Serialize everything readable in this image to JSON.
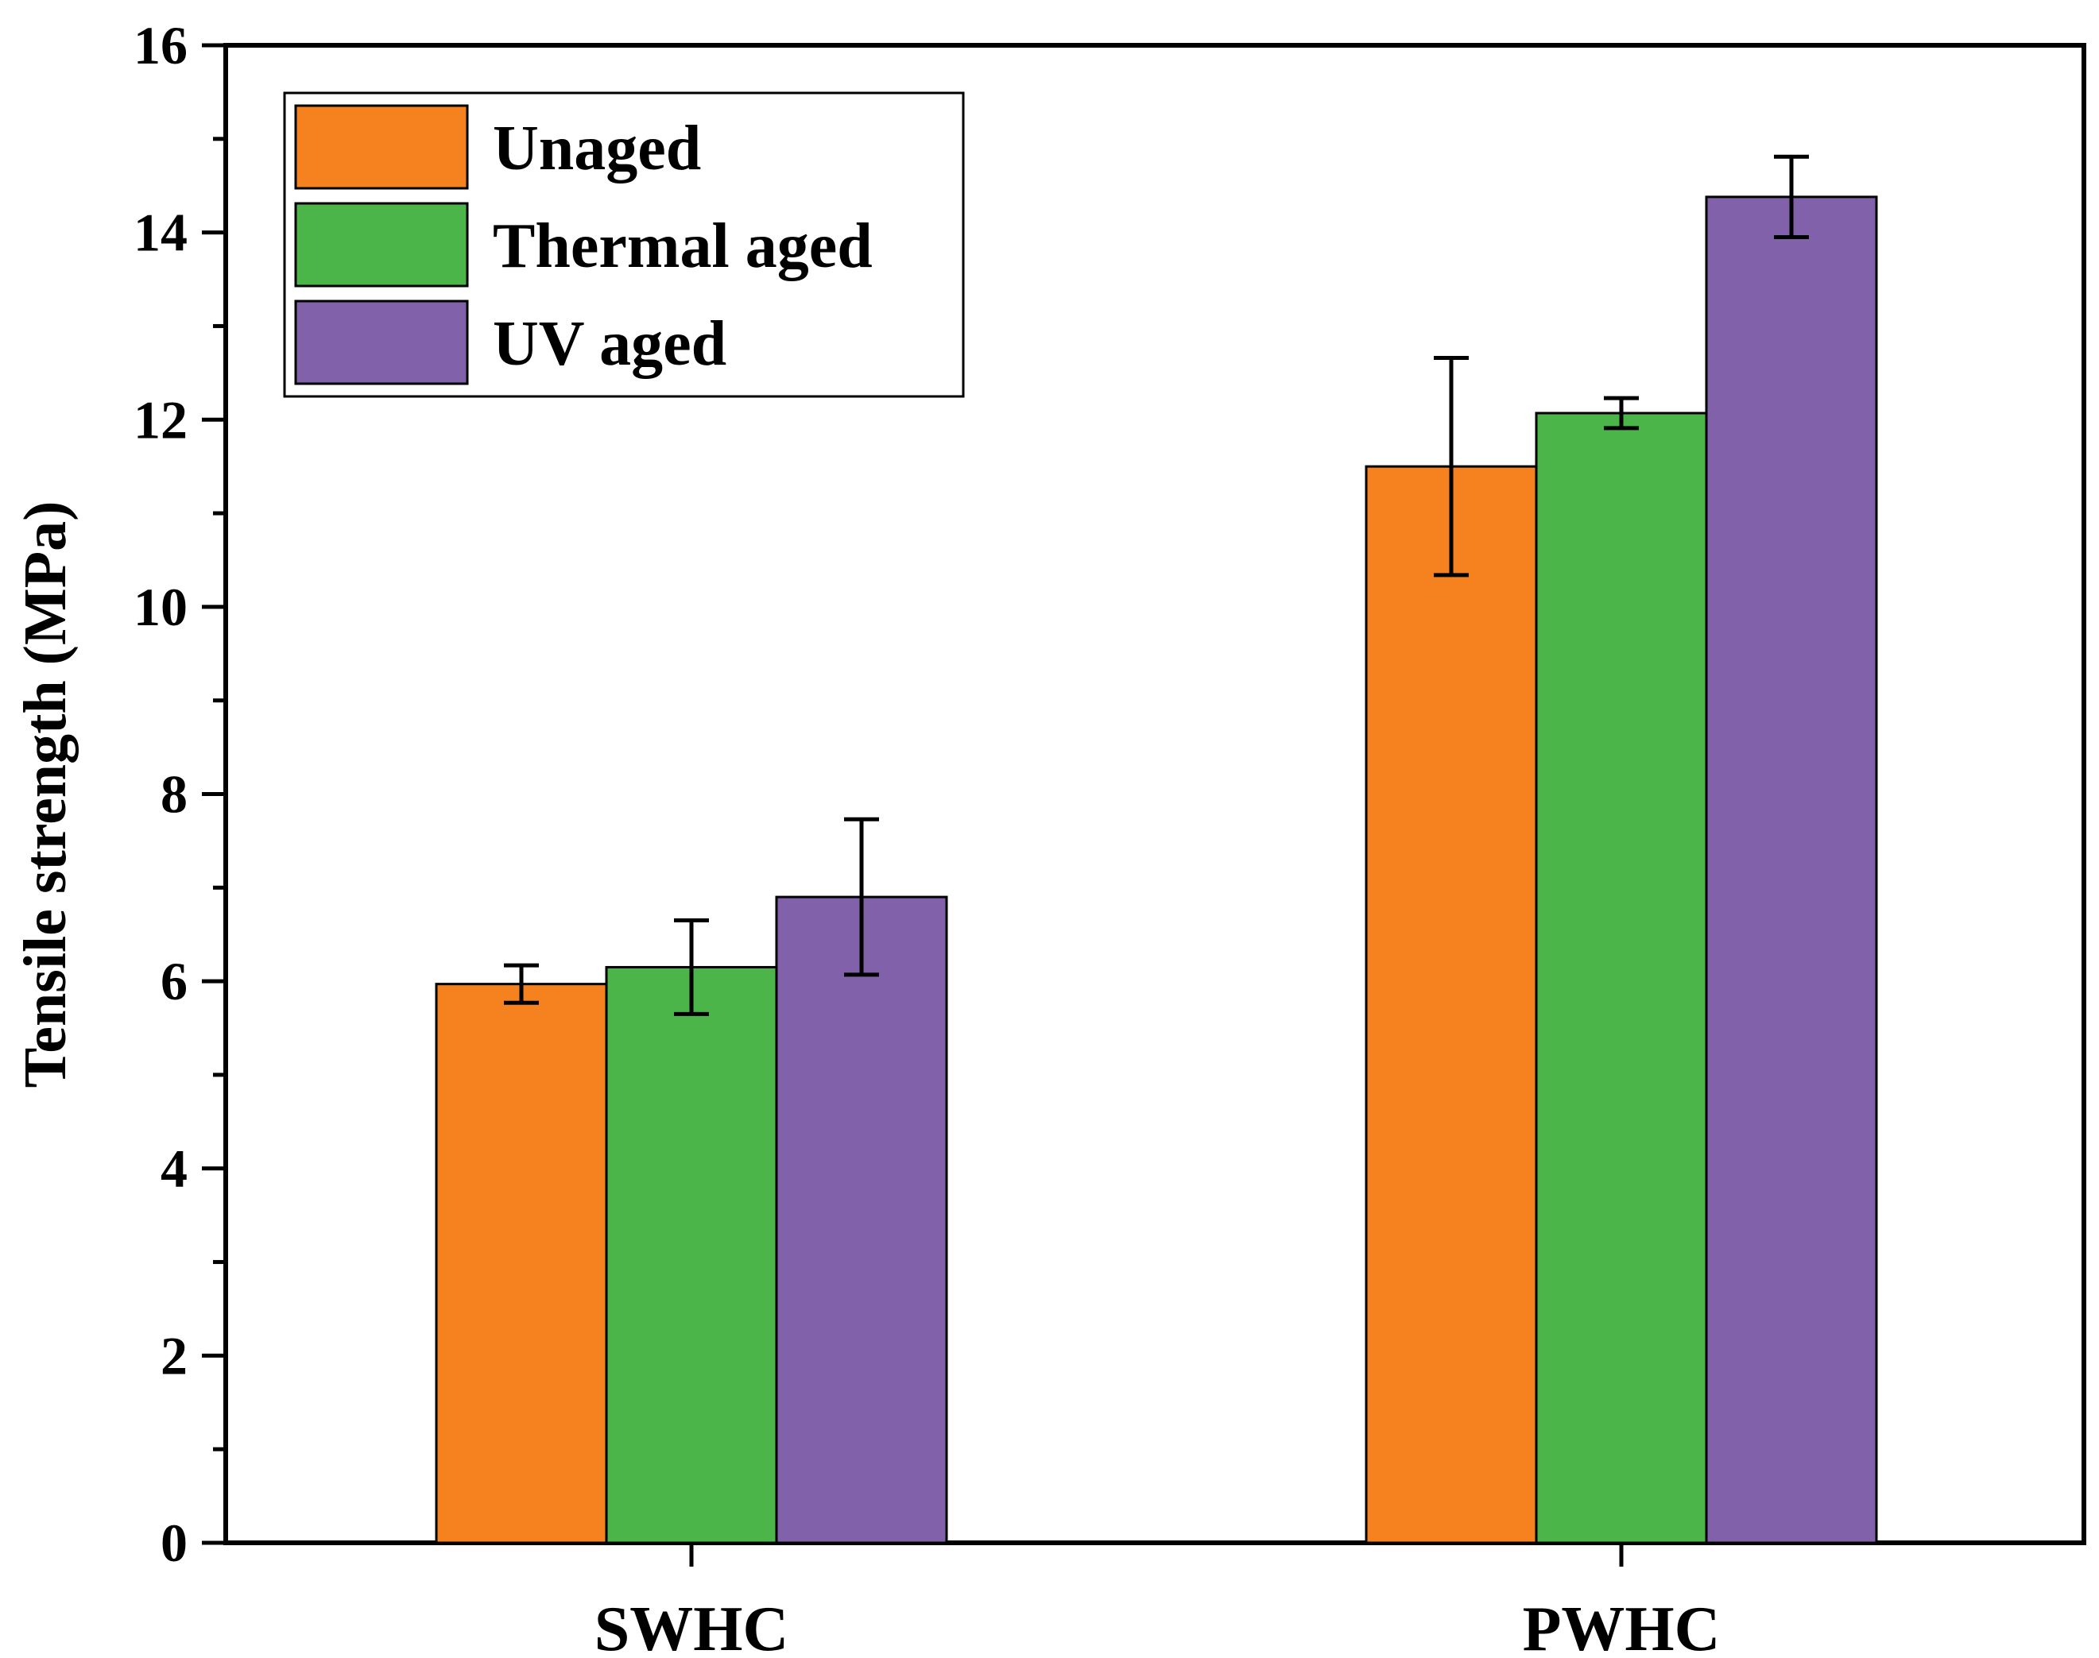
{
  "chart_data": {
    "type": "bar",
    "title": "",
    "xlabel": "",
    "ylabel": "Tensile strength (MPa)",
    "ylim": [
      0,
      16
    ],
    "yticks": [
      0,
      2,
      4,
      6,
      8,
      10,
      12,
      14,
      16
    ],
    "grid": false,
    "legend_position": "top-left",
    "categories": [
      "SWHC",
      "PWHC"
    ],
    "series": [
      {
        "name": "Unaged",
        "color": "#f5821f",
        "values": [
          5.97,
          11.5
        ],
        "errors": [
          0.2,
          1.16
        ]
      },
      {
        "name": "Thermal aged",
        "color": "#4bb54a",
        "values": [
          6.15,
          12.07
        ],
        "errors": [
          0.5,
          0.16
        ]
      },
      {
        "name": "UV aged",
        "color": "#8161a9",
        "values": [
          6.9,
          14.38
        ],
        "errors": [
          0.83,
          0.43
        ]
      }
    ]
  }
}
